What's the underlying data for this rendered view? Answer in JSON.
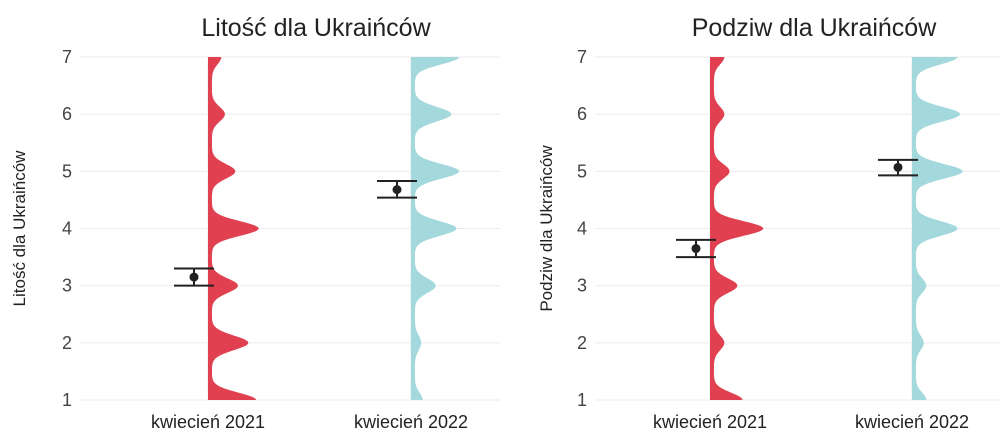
{
  "chart_data": [
    {
      "type": "violin",
      "title": "Litość dla Ukraińców",
      "xlabel": "",
      "ylabel": "Litość dla Ukraińców",
      "ylim": [
        1,
        7
      ],
      "yticks": [
        1,
        2,
        3,
        4,
        5,
        6,
        7
      ],
      "categories": [
        "kwiecień 2021",
        "kwiecień 2022"
      ],
      "grid": true,
      "series": [
        {
          "category": "kwiecień 2021",
          "color": "#e0404f",
          "mean": 3.15,
          "ci": [
            3.0,
            3.3
          ],
          "density": [
            {
              "y": 1,
              "d": 0.85
            },
            {
              "y": 2,
              "d": 0.7
            },
            {
              "y": 3,
              "d": 0.5
            },
            {
              "y": 4,
              "d": 0.9
            },
            {
              "y": 5,
              "d": 0.45
            },
            {
              "y": 6,
              "d": 0.25
            },
            {
              "y": 7,
              "d": 0.18
            }
          ]
        },
        {
          "category": "kwiecień 2022",
          "color": "#a3d8dc",
          "mean": 4.68,
          "ci": [
            4.54,
            4.83
          ],
          "density": [
            {
              "y": 1,
              "d": 0.15
            },
            {
              "y": 2,
              "d": 0.12
            },
            {
              "y": 3,
              "d": 0.4
            },
            {
              "y": 4,
              "d": 0.8
            },
            {
              "y": 5,
              "d": 0.85
            },
            {
              "y": 6,
              "d": 0.7
            },
            {
              "y": 7,
              "d": 0.85
            }
          ]
        }
      ]
    },
    {
      "type": "violin",
      "title": "Podziw dla Ukraińców",
      "xlabel": "",
      "ylabel": "Podziw dla Ukraińców",
      "ylim": [
        1,
        7
      ],
      "yticks": [
        1,
        2,
        3,
        4,
        5,
        6,
        7
      ],
      "categories": [
        "kwiecień 2021",
        "kwiecień 2022"
      ],
      "grid": true,
      "series": [
        {
          "category": "kwiecień 2021",
          "color": "#e0404f",
          "mean": 3.65,
          "ci": [
            3.5,
            3.8
          ],
          "density": [
            {
              "y": 1,
              "d": 0.55
            },
            {
              "y": 2,
              "d": 0.2
            },
            {
              "y": 3,
              "d": 0.45
            },
            {
              "y": 4,
              "d": 0.95
            },
            {
              "y": 5,
              "d": 0.3
            },
            {
              "y": 6,
              "d": 0.2
            },
            {
              "y": 7,
              "d": 0.2
            }
          ]
        },
        {
          "category": "kwiecień 2022",
          "color": "#a3d8dc",
          "mean": 5.07,
          "ci": [
            4.93,
            5.2
          ],
          "density": [
            {
              "y": 1,
              "d": 0.2
            },
            {
              "y": 2,
              "d": 0.15
            },
            {
              "y": 3,
              "d": 0.2
            },
            {
              "y": 4,
              "d": 0.8
            },
            {
              "y": 5,
              "d": 0.9
            },
            {
              "y": 6,
              "d": 0.85
            },
            {
              "y": 7,
              "d": 0.8
            }
          ]
        }
      ]
    }
  ]
}
